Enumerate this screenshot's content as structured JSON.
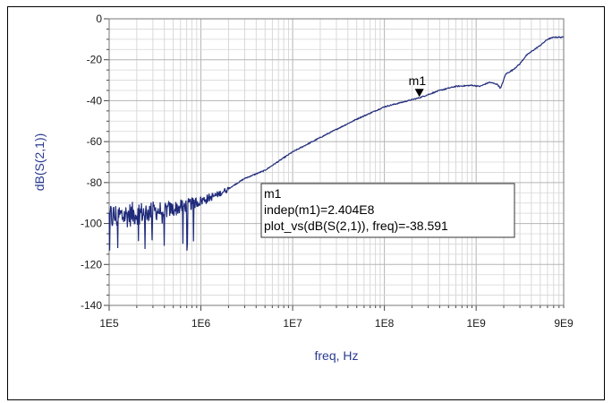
{
  "chart_data": {
    "type": "line",
    "title": "",
    "xlabel": "freq, Hz",
    "ylabel": "dB(S(2,1))",
    "xscale": "log",
    "xlim": [
      100000,
      9000000000
    ],
    "ylim": [
      -140,
      0
    ],
    "x_ticks": [
      {
        "value": 100000,
        "label": "1E5"
      },
      {
        "value": 1000000,
        "label": "1E6"
      },
      {
        "value": 10000000,
        "label": "1E7"
      },
      {
        "value": 100000000,
        "label": "1E8"
      },
      {
        "value": 1000000000,
        "label": "1E9"
      },
      {
        "value": 9000000000,
        "label": "9E9"
      }
    ],
    "y_ticks": [
      {
        "value": 0,
        "label": "0"
      },
      {
        "value": -20,
        "label": "-20"
      },
      {
        "value": -40,
        "label": "-40"
      },
      {
        "value": -60,
        "label": "-60"
      },
      {
        "value": -80,
        "label": "-80"
      },
      {
        "value": -100,
        "label": "-100"
      },
      {
        "value": -120,
        "label": "-120"
      },
      {
        "value": -140,
        "label": "-140"
      }
    ],
    "grid": true,
    "line_color": "#1f2a7a",
    "series": [
      {
        "noise_region_end_x": 2000000,
        "x": [
          100000,
          150000,
          200000,
          300000,
          500000,
          700000,
          1000000,
          1500000,
          2000000,
          3000000,
          5000000,
          10000000,
          20000000,
          50000000,
          100000000,
          240400000,
          400000000,
          600000000,
          900000000,
          1100000000,
          1400000000,
          1700000000,
          1850000000,
          2100000000,
          2500000000,
          3000000000,
          3500000000,
          4000000000,
          5000000000,
          6000000000,
          7000000000,
          9000000000
        ],
        "y": [
          -97,
          -96,
          -95,
          -94,
          -93,
          -91,
          -89,
          -86,
          -83,
          -78,
          -74,
          -65,
          -58,
          -49,
          -43,
          -38.591,
          -35,
          -33,
          -32.5,
          -33,
          -31,
          -32,
          -34,
          -27,
          -25,
          -22,
          -18,
          -16,
          -13,
          -10,
          -9,
          -9
        ]
      }
    ],
    "marker": {
      "name": "m1",
      "x": 240400000,
      "y": -38.591,
      "readout_title": "m1",
      "readout_line1": "indep(m1)=2.404E8",
      "readout_line2": "plot_vs(dB(S(2,1)), freq)=-38.591"
    }
  }
}
